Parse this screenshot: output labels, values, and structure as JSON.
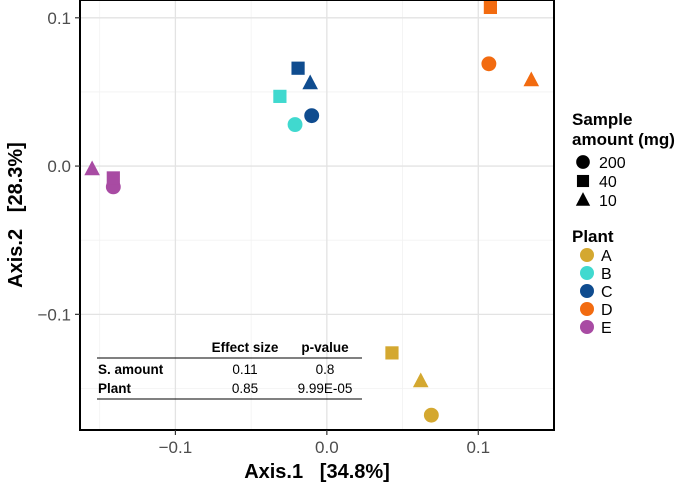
{
  "chart_data": {
    "type": "scatter",
    "xlabel": "Axis.1   [34.8%]",
    "ylabel": "Axis.2   [28.3%]",
    "xlim": [
      -0.163,
      0.15
    ],
    "ylim": [
      -0.178,
      0.112
    ],
    "x_ticks": [
      -0.1,
      0.0,
      0.1
    ],
    "x_tick_labels": [
      "−0.1",
      "0.0",
      "0.1"
    ],
    "y_ticks": [
      -0.1,
      0.0,
      0.1
    ],
    "y_tick_labels": [
      "−0.1",
      "0.0",
      "0.1"
    ],
    "grid": true,
    "legend_placement": "right",
    "shape_legend": {
      "title_line1": "Sample",
      "title_line2": "amount (mg)",
      "items": [
        {
          "label": "200",
          "shape": "circle"
        },
        {
          "label": "40",
          "shape": "square"
        },
        {
          "label": "10",
          "shape": "triangle"
        }
      ]
    },
    "color_legend": {
      "title": "Plant",
      "items": [
        {
          "label": "A",
          "color": "#D4A830"
        },
        {
          "label": "B",
          "color": "#40D9CF"
        },
        {
          "label": "C",
          "color": "#0F4C8F"
        },
        {
          "label": "D",
          "color": "#F26B10"
        },
        {
          "label": "E",
          "color": "#A84BA3"
        }
      ]
    },
    "points": [
      {
        "plant": "A",
        "amount": "200",
        "x": 0.069,
        "y": -0.168
      },
      {
        "plant": "A",
        "amount": "40",
        "x": 0.043,
        "y": -0.126
      },
      {
        "plant": "A",
        "amount": "10",
        "x": 0.062,
        "y": -0.145
      },
      {
        "plant": "B",
        "amount": "200",
        "x": -0.021,
        "y": 0.028
      },
      {
        "plant": "B",
        "amount": "40",
        "x": -0.031,
        "y": 0.047
      },
      {
        "plant": "C",
        "amount": "200",
        "x": -0.01,
        "y": 0.034
      },
      {
        "plant": "C",
        "amount": "40",
        "x": -0.019,
        "y": 0.066
      },
      {
        "plant": "C",
        "amount": "10",
        "x": -0.011,
        "y": 0.056
      },
      {
        "plant": "D",
        "amount": "200",
        "x": 0.107,
        "y": 0.069
      },
      {
        "plant": "D",
        "amount": "40",
        "x": 0.108,
        "y": 0.107
      },
      {
        "plant": "D",
        "amount": "10",
        "x": 0.135,
        "y": 0.058
      },
      {
        "plant": "E",
        "amount": "200",
        "x": -0.141,
        "y": -0.014
      },
      {
        "plant": "E",
        "amount": "40",
        "x": -0.141,
        "y": -0.008
      },
      {
        "plant": "E",
        "amount": "10",
        "x": -0.155,
        "y": -0.002
      }
    ],
    "table": {
      "headers": [
        "",
        "Effect size",
        "p-value"
      ],
      "rows": [
        [
          "S. amount",
          "0.11",
          "0.8"
        ],
        [
          "Plant",
          "0.85",
          "9.99E-05"
        ]
      ]
    }
  }
}
